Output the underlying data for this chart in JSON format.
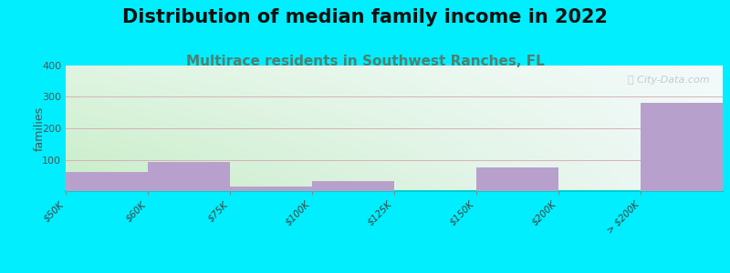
{
  "title": "Distribution of median family income in 2022",
  "subtitle": "Multirace residents in Southwest Ranches, FL",
  "ylabel": "families",
  "categories": [
    "$50K",
    "$60K",
    "$75K",
    "$100K",
    "$125K",
    "$150K",
    "$200K",
    "> $200K"
  ],
  "tick_labels": [
    "$50K",
    "$60K",
    "$75K",
    "$100K",
    "$125K",
    "$150K",
    "$200K",
    "> $200K"
  ],
  "values": [
    62,
    93,
    15,
    32,
    0,
    75,
    0,
    282
  ],
  "bar_color": "#b8a0cc",
  "background_outer": "#00eeff",
  "background_grad_left": "#c8eec8",
  "background_grad_right": "#f0f8f8",
  "background_top": "#f5fafa",
  "ylim": [
    0,
    400
  ],
  "yticks": [
    0,
    100,
    200,
    300,
    400
  ],
  "title_fontsize": 15,
  "subtitle_fontsize": 11,
  "subtitle_color": "#508070",
  "watermark": "City-Data.com",
  "bar_width": 1.0
}
